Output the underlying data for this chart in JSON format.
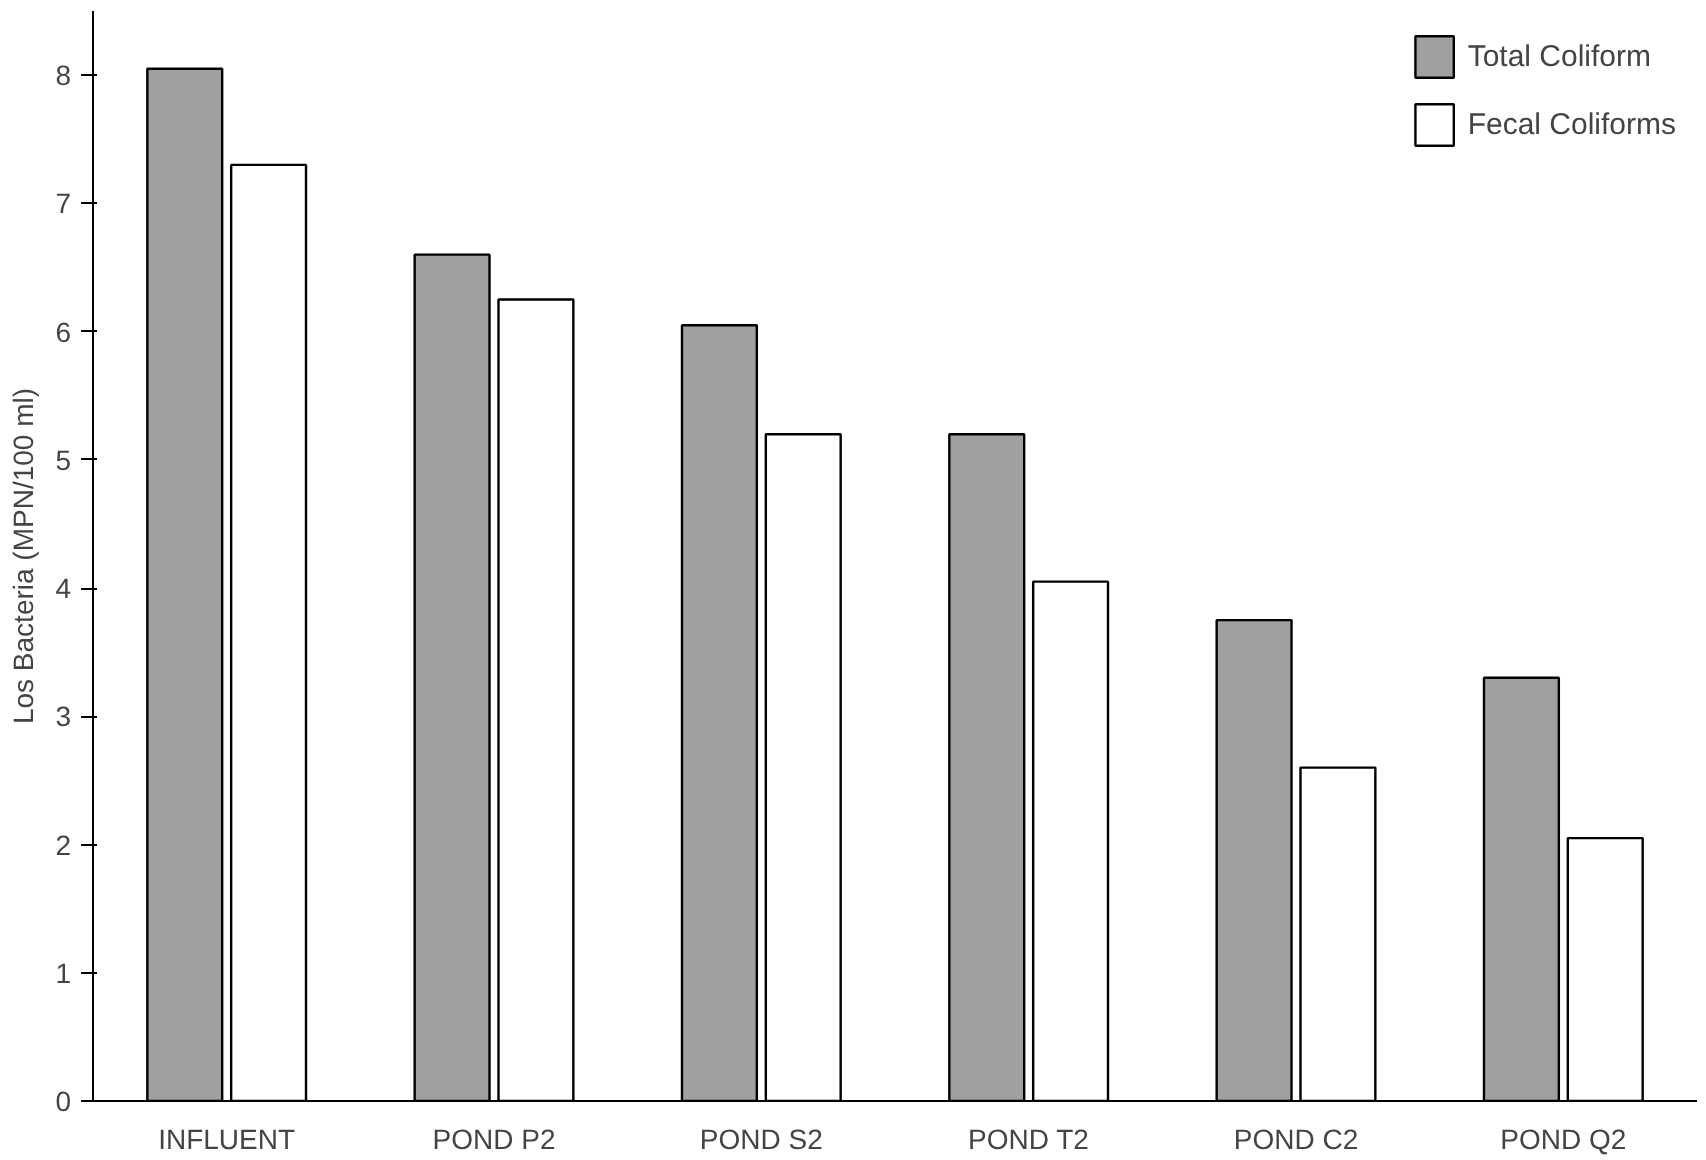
{
  "chart_data": {
    "type": "bar",
    "ylabel": "Los Bacteria (MPN/100 ml)",
    "categories": [
      "INFLUENT",
      "POND P2",
      "POND S2",
      "POND T2",
      "POND C2",
      "POND Q2"
    ],
    "series": [
      {
        "name": "Total Coliform",
        "color": "#a0a0a0",
        "values": [
          8.05,
          6.6,
          6.05,
          5.2,
          3.75,
          3.3
        ]
      },
      {
        "name": "Fecal Coliforms",
        "color": "#ffffff",
        "values": [
          7.3,
          6.25,
          5.2,
          4.05,
          2.6,
          2.05
        ]
      }
    ],
    "ylim": [
      0,
      8.5
    ],
    "yticks": [
      0,
      1,
      2,
      3,
      4,
      5,
      6,
      7,
      8
    ],
    "grid": false,
    "legend": "top right"
  }
}
